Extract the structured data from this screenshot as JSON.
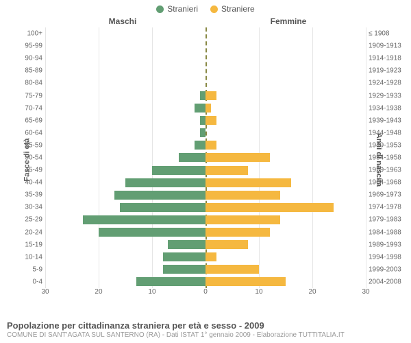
{
  "legend": {
    "male": {
      "label": "Stranieri",
      "color": "#629e73"
    },
    "female": {
      "label": "Straniere",
      "color": "#f5b840"
    }
  },
  "headers": {
    "left": "Maschi",
    "right": "Femmine"
  },
  "axis_titles": {
    "left": "Fasce di età",
    "right": "Anni di nascita"
  },
  "chart": {
    "type": "population-pyramid",
    "xmax": 30,
    "xticks": [
      30,
      20,
      10,
      0,
      10,
      20,
      30
    ],
    "background_color": "#ffffff",
    "grid_color": "#e5e5e5",
    "center_line_color": "#888844",
    "bar_color_male": "#629e73",
    "bar_color_female": "#f5b840",
    "label_fontsize": 10,
    "rows": [
      {
        "age": "100+",
        "year": "≤ 1908",
        "m": 0,
        "f": 0
      },
      {
        "age": "95-99",
        "year": "1909-1913",
        "m": 0,
        "f": 0
      },
      {
        "age": "90-94",
        "year": "1914-1918",
        "m": 0,
        "f": 0
      },
      {
        "age": "85-89",
        "year": "1919-1923",
        "m": 0,
        "f": 0
      },
      {
        "age": "80-84",
        "year": "1924-1928",
        "m": 0,
        "f": 0
      },
      {
        "age": "75-79",
        "year": "1929-1933",
        "m": 1,
        "f": 2
      },
      {
        "age": "70-74",
        "year": "1934-1938",
        "m": 2,
        "f": 1
      },
      {
        "age": "65-69",
        "year": "1939-1943",
        "m": 1,
        "f": 2
      },
      {
        "age": "60-64",
        "year": "1944-1948",
        "m": 1,
        "f": 0
      },
      {
        "age": "55-59",
        "year": "1949-1953",
        "m": 2,
        "f": 2
      },
      {
        "age": "50-54",
        "year": "1954-1958",
        "m": 5,
        "f": 12
      },
      {
        "age": "45-49",
        "year": "1959-1963",
        "m": 10,
        "f": 8
      },
      {
        "age": "40-44",
        "year": "1964-1968",
        "m": 15,
        "f": 16
      },
      {
        "age": "35-39",
        "year": "1969-1973",
        "m": 17,
        "f": 14
      },
      {
        "age": "30-34",
        "year": "1974-1978",
        "m": 16,
        "f": 24
      },
      {
        "age": "25-29",
        "year": "1979-1983",
        "m": 23,
        "f": 14
      },
      {
        "age": "20-24",
        "year": "1984-1988",
        "m": 20,
        "f": 12
      },
      {
        "age": "15-19",
        "year": "1989-1993",
        "m": 7,
        "f": 8
      },
      {
        "age": "10-14",
        "year": "1994-1998",
        "m": 8,
        "f": 2
      },
      {
        "age": "5-9",
        "year": "1999-2003",
        "m": 8,
        "f": 10
      },
      {
        "age": "0-4",
        "year": "2004-2008",
        "m": 13,
        "f": 15
      }
    ]
  },
  "footer": {
    "title": "Popolazione per cittadinanza straniera per età e sesso - 2009",
    "subtitle": "COMUNE DI SANT'AGATA SUL SANTERNO (RA) - Dati ISTAT 1° gennaio 2009 - Elaborazione TUTTITALIA.IT"
  }
}
